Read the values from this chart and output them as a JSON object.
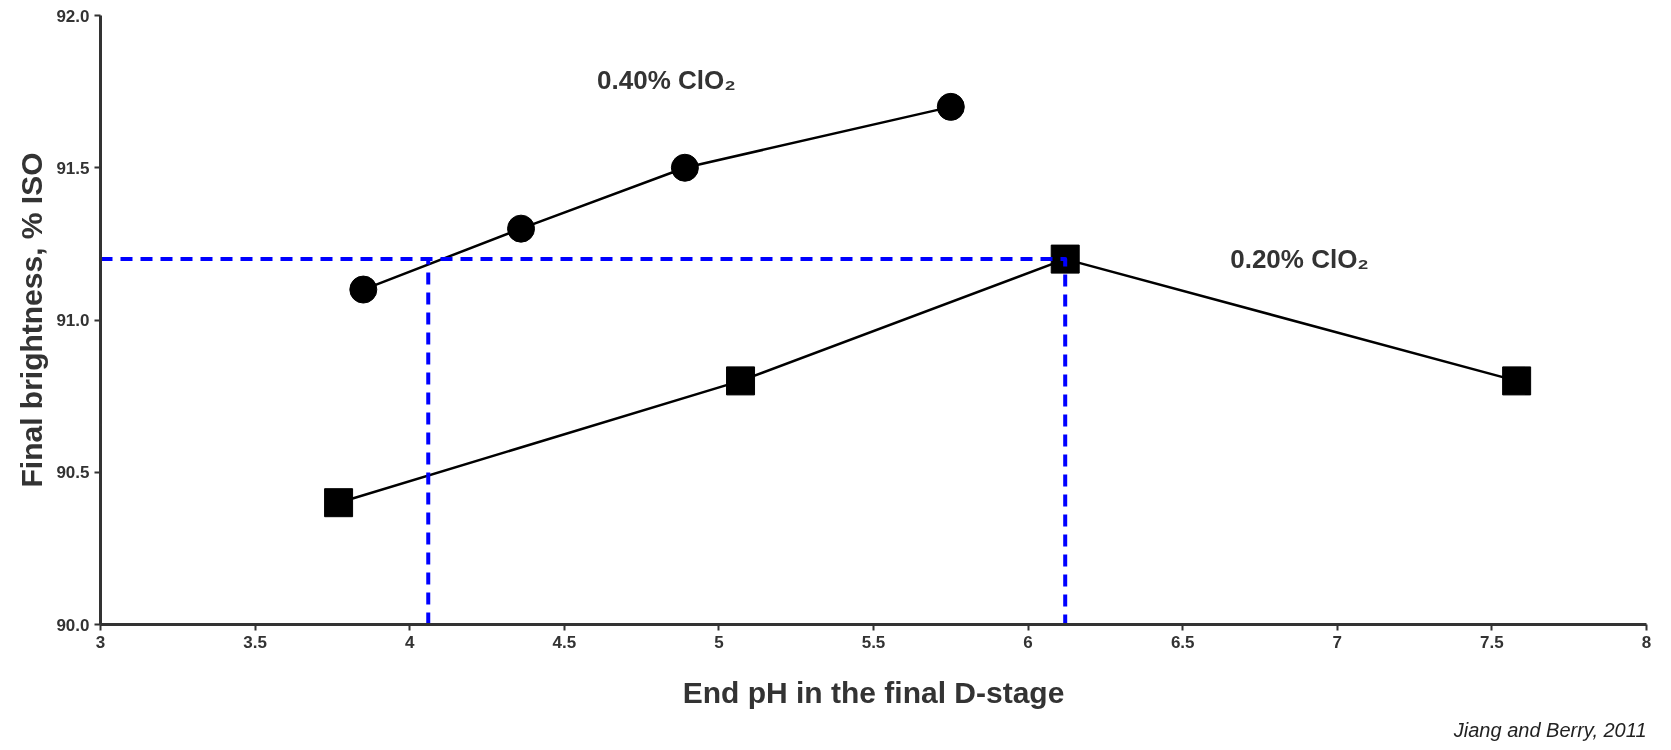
{
  "chart_data": {
    "type": "line",
    "xlabel": "End pH in the final D-stage",
    "ylabel": "Final brightness, % ISO",
    "xlim": [
      3,
      8
    ],
    "ylim": [
      90.0,
      92.0
    ],
    "xticks": [
      3,
      3.5,
      4,
      4.5,
      5,
      5.5,
      6,
      6.5,
      7,
      7.5,
      8
    ],
    "yticks": [
      {
        "value": 90.0,
        "label": "90.0"
      },
      {
        "value": 90.5,
        "label": "90.5"
      },
      {
        "value": 91.0,
        "label": "91.0"
      },
      {
        "value": 91.5,
        "label": "91.5"
      },
      {
        "value": 92.0,
        "label": "92.0"
      }
    ],
    "grid": false,
    "series": [
      {
        "name": "0.40% ClO₂",
        "color": "#000000",
        "marker": "circle",
        "line_style": "solid",
        "x": [
          3.85,
          4.36,
          4.89,
          5.75
        ],
        "values": [
          91.1,
          91.3,
          91.5,
          91.7
        ]
      },
      {
        "name": "0.20% ClO₂",
        "color": "#000000",
        "marker": "square",
        "line_style": "solid",
        "x": [
          3.77,
          5.07,
          6.12,
          7.58
        ],
        "values": [
          90.4,
          90.8,
          91.2,
          90.8
        ]
      },
      {
        "color": "#0000ff",
        "marker": "none",
        "line_style": "dashed",
        "x": [
          3,
          6.12,
          6.12
        ],
        "values": [
          91.2,
          91.2,
          90.0
        ]
      },
      {
        "color": "#0000ff",
        "marker": "none",
        "line_style": "dashed",
        "x": [
          4.06,
          4.06
        ],
        "values": [
          90.0,
          91.2
        ]
      }
    ],
    "annotations": [
      "Jiang and Berry, 2011"
    ]
  }
}
